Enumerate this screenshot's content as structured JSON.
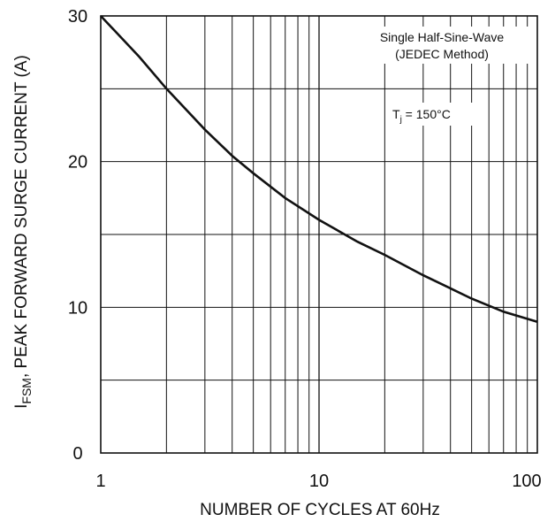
{
  "chart_data": {
    "type": "line",
    "x_scale": "log",
    "xlim": [
      1,
      100
    ],
    "ylim": [
      0,
      30
    ],
    "x_ticks": [
      "1",
      "10",
      "100"
    ],
    "y_ticks": [
      "0",
      "10",
      "20",
      "30"
    ],
    "grid": true,
    "xlabel": "NUMBER OF CYCLES AT 60Hz",
    "ylabel": {
      "main": "I",
      "sub": "FSM",
      "rest": ", PEAK FORWARD SURGE CURRENT (A)"
    },
    "annotations": {
      "line1": "Single Half-Sine-Wave",
      "line2": "(JEDEC Method)",
      "tj_main": "T",
      "tj_sub": "j",
      "tj_rest": " = 150°C"
    },
    "series": [
      {
        "x": [
          1,
          1.5,
          2,
          3,
          4,
          5,
          7,
          10,
          15,
          20,
          30,
          40,
          50,
          70,
          100
        ],
        "y": [
          30,
          27.2,
          25.0,
          22.2,
          20.4,
          19.2,
          17.5,
          16.0,
          14.5,
          13.6,
          12.2,
          11.3,
          10.6,
          9.7,
          9.0
        ]
      }
    ],
    "line_color": "#111111",
    "grid_color": "#111111"
  }
}
